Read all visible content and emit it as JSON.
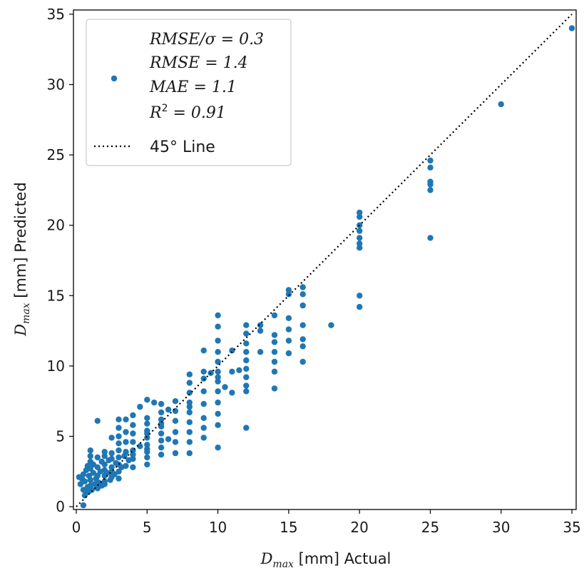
{
  "chart_data": {
    "type": "scatter",
    "xlabel_main": "D",
    "xlabel_sub": "max",
    "xlabel_rest": " [mm] Actual",
    "ylabel_main": "D",
    "ylabel_sub": "max",
    "ylabel_rest": " [mm] Predicted",
    "xlim": [
      -0.2,
      35.3
    ],
    "ylim": [
      -0.2,
      35.3
    ],
    "xticks": [
      0,
      5,
      10,
      15,
      20,
      25,
      30,
      35
    ],
    "yticks": [
      0,
      5,
      10,
      15,
      20,
      25,
      30,
      35
    ],
    "grid": false,
    "legend_placement": "top-left",
    "point_color": "#1f77b4",
    "line_color": "#000000",
    "legend": {
      "stats_lines": [
        "RMSE/σ = 0.3",
        "RMSE = 1.4",
        "MAE = 1.1"
      ],
      "r2_prefix": "R",
      "r2_sup": "2",
      "r2_suffix": " = 0.91",
      "line_label": "45° Line"
    },
    "reference_line": {
      "from": [
        0,
        0
      ],
      "to": [
        35,
        35
      ]
    },
    "points": [
      [
        0.2,
        2.1
      ],
      [
        0.3,
        1.6
      ],
      [
        0.4,
        2.0
      ],
      [
        0.5,
        0.1
      ],
      [
        0.5,
        1.2
      ],
      [
        0.5,
        2.3
      ],
      [
        0.6,
        0.8
      ],
      [
        0.6,
        1.8
      ],
      [
        0.7,
        1.0
      ],
      [
        0.7,
        2.6
      ],
      [
        0.8,
        1.4
      ],
      [
        0.8,
        2.9
      ],
      [
        0.9,
        1.1
      ],
      [
        0.9,
        2.2
      ],
      [
        1.0,
        1.5
      ],
      [
        1.0,
        3.6
      ],
      [
        1.0,
        4.0
      ],
      [
        1.0,
        2.7
      ],
      [
        1.0,
        3.2
      ],
      [
        1.0,
        1.9
      ],
      [
        1.1,
        1.2
      ],
      [
        1.2,
        2.4
      ],
      [
        1.2,
        3.0
      ],
      [
        1.3,
        1.6
      ],
      [
        1.4,
        2.0
      ],
      [
        1.5,
        1.3
      ],
      [
        1.5,
        2.8
      ],
      [
        1.5,
        3.5
      ],
      [
        1.5,
        6.1
      ],
      [
        1.5,
        2.2
      ],
      [
        1.6,
        1.7
      ],
      [
        1.7,
        2.5
      ],
      [
        1.8,
        1.5
      ],
      [
        1.8,
        3.2
      ],
      [
        2.0,
        1.8
      ],
      [
        2.0,
        2.2
      ],
      [
        2.0,
        2.6
      ],
      [
        2.0,
        3.0
      ],
      [
        2.0,
        3.6
      ],
      [
        2.0,
        3.9
      ],
      [
        2.0,
        1.6
      ],
      [
        2.2,
        2.4
      ],
      [
        2.3,
        3.3
      ],
      [
        2.4,
        1.9
      ],
      [
        2.5,
        2.1
      ],
      [
        2.5,
        2.8
      ],
      [
        2.5,
        3.4
      ],
      [
        2.5,
        3.8
      ],
      [
        2.5,
        4.9
      ],
      [
        2.5,
        2.5
      ],
      [
        2.7,
        2.3
      ],
      [
        2.8,
        3.1
      ],
      [
        3.0,
        2.0
      ],
      [
        3.0,
        2.5
      ],
      [
        3.0,
        3.0
      ],
      [
        3.0,
        3.5
      ],
      [
        3.0,
        4.0
      ],
      [
        3.0,
        4.5
      ],
      [
        3.0,
        5.0
      ],
      [
        3.0,
        5.6
      ],
      [
        3.0,
        6.2
      ],
      [
        3.2,
        2.8
      ],
      [
        3.4,
        3.6
      ],
      [
        3.5,
        2.9
      ],
      [
        3.5,
        3.9
      ],
      [
        3.5,
        4.6
      ],
      [
        3.5,
        5.3
      ],
      [
        3.5,
        6.2
      ],
      [
        3.7,
        3.3
      ],
      [
        4.0,
        2.8
      ],
      [
        4.0,
        3.4
      ],
      [
        4.0,
        4.0
      ],
      [
        4.0,
        4.6
      ],
      [
        4.0,
        5.2
      ],
      [
        4.0,
        5.8
      ],
      [
        4.0,
        6.5
      ],
      [
        4.0,
        3.7
      ],
      [
        4.5,
        4.3
      ],
      [
        4.5,
        7.1
      ],
      [
        5.0,
        3.0
      ],
      [
        5.0,
        3.5
      ],
      [
        5.0,
        3.9
      ],
      [
        5.0,
        4.4
      ],
      [
        5.0,
        4.9
      ],
      [
        5.0,
        5.4
      ],
      [
        5.0,
        5.9
      ],
      [
        5.0,
        6.3
      ],
      [
        5.0,
        7.6
      ],
      [
        5.0,
        4.1
      ],
      [
        5.0,
        5.2
      ],
      [
        5.5,
        7.4
      ],
      [
        6.0,
        3.7
      ],
      [
        6.0,
        4.2
      ],
      [
        6.0,
        4.7
      ],
      [
        6.0,
        5.2
      ],
      [
        6.0,
        5.7
      ],
      [
        6.0,
        6.2
      ],
      [
        6.0,
        6.7
      ],
      [
        6.0,
        7.3
      ],
      [
        6.0,
        5.9
      ],
      [
        6.5,
        4.8
      ],
      [
        6.5,
        6.9
      ],
      [
        7.0,
        3.8
      ],
      [
        7.0,
        4.6
      ],
      [
        7.0,
        5.3
      ],
      [
        7.0,
        6.1
      ],
      [
        7.0,
        6.8
      ],
      [
        7.0,
        7.5
      ],
      [
        8.0,
        3.8
      ],
      [
        8.0,
        4.6
      ],
      [
        8.0,
        5.3
      ],
      [
        8.0,
        6.0
      ],
      [
        8.0,
        6.7
      ],
      [
        8.0,
        7.4
      ],
      [
        8.0,
        8.1
      ],
      [
        8.0,
        8.8
      ],
      [
        8.0,
        9.4
      ],
      [
        8.0,
        7.1
      ],
      [
        9.0,
        4.9
      ],
      [
        9.0,
        6.3
      ],
      [
        9.0,
        7.3
      ],
      [
        9.0,
        8.2
      ],
      [
        9.0,
        9.1
      ],
      [
        9.0,
        9.6
      ],
      [
        9.0,
        11.1
      ],
      [
        9.0,
        5.6
      ],
      [
        9.5,
        9.5
      ],
      [
        10.0,
        4.2
      ],
      [
        10.0,
        5.8
      ],
      [
        10.0,
        6.6
      ],
      [
        10.0,
        7.4
      ],
      [
        10.0,
        8.2
      ],
      [
        10.0,
        8.9
      ],
      [
        10.0,
        9.6
      ],
      [
        10.0,
        10.3
      ],
      [
        10.0,
        11.0
      ],
      [
        10.0,
        11.8
      ],
      [
        10.0,
        12.8
      ],
      [
        10.0,
        13.6
      ],
      [
        10.0,
        9.2
      ],
      [
        10.5,
        8.5
      ],
      [
        11.0,
        8.1
      ],
      [
        11.0,
        9.6
      ],
      [
        11.0,
        11.1
      ],
      [
        11.5,
        9.7
      ],
      [
        12.0,
        5.6
      ],
      [
        12.0,
        8.2
      ],
      [
        12.0,
        8.6
      ],
      [
        12.0,
        9.2
      ],
      [
        12.0,
        9.8
      ],
      [
        12.0,
        10.4
      ],
      [
        12.0,
        11.0
      ],
      [
        12.0,
        11.6
      ],
      [
        12.0,
        12.3
      ],
      [
        12.0,
        12.9
      ],
      [
        13.0,
        11.0
      ],
      [
        13.0,
        12.5
      ],
      [
        13.0,
        12.9
      ],
      [
        14.0,
        8.4
      ],
      [
        14.0,
        9.6
      ],
      [
        14.0,
        10.3
      ],
      [
        14.0,
        11.0
      ],
      [
        14.0,
        11.7
      ],
      [
        14.0,
        12.2
      ],
      [
        14.0,
        13.6
      ],
      [
        15.0,
        10.9
      ],
      [
        15.0,
        11.8
      ],
      [
        15.0,
        12.6
      ],
      [
        15.0,
        13.4
      ],
      [
        15.0,
        15.1
      ],
      [
        15.0,
        15.4
      ],
      [
        16.0,
        10.3
      ],
      [
        16.0,
        11.4
      ],
      [
        16.0,
        11.9
      ],
      [
        16.0,
        12.9
      ],
      [
        16.0,
        14.3
      ],
      [
        16.0,
        15.1
      ],
      [
        16.0,
        15.6
      ],
      [
        18.0,
        12.9
      ],
      [
        20.0,
        14.2
      ],
      [
        20.0,
        15.0
      ],
      [
        20.0,
        18.4
      ],
      [
        20.0,
        18.7
      ],
      [
        20.0,
        19.1
      ],
      [
        20.0,
        19.6
      ],
      [
        20.0,
        20.0
      ],
      [
        20.0,
        20.6
      ],
      [
        20.0,
        20.9
      ],
      [
        25.0,
        19.1
      ],
      [
        25.0,
        22.5
      ],
      [
        25.0,
        22.9
      ],
      [
        25.0,
        23.1
      ],
      [
        25.0,
        24.1
      ],
      [
        25.0,
        24.6
      ],
      [
        30.0,
        28.6
      ],
      [
        35.0,
        34.0
      ]
    ]
  }
}
